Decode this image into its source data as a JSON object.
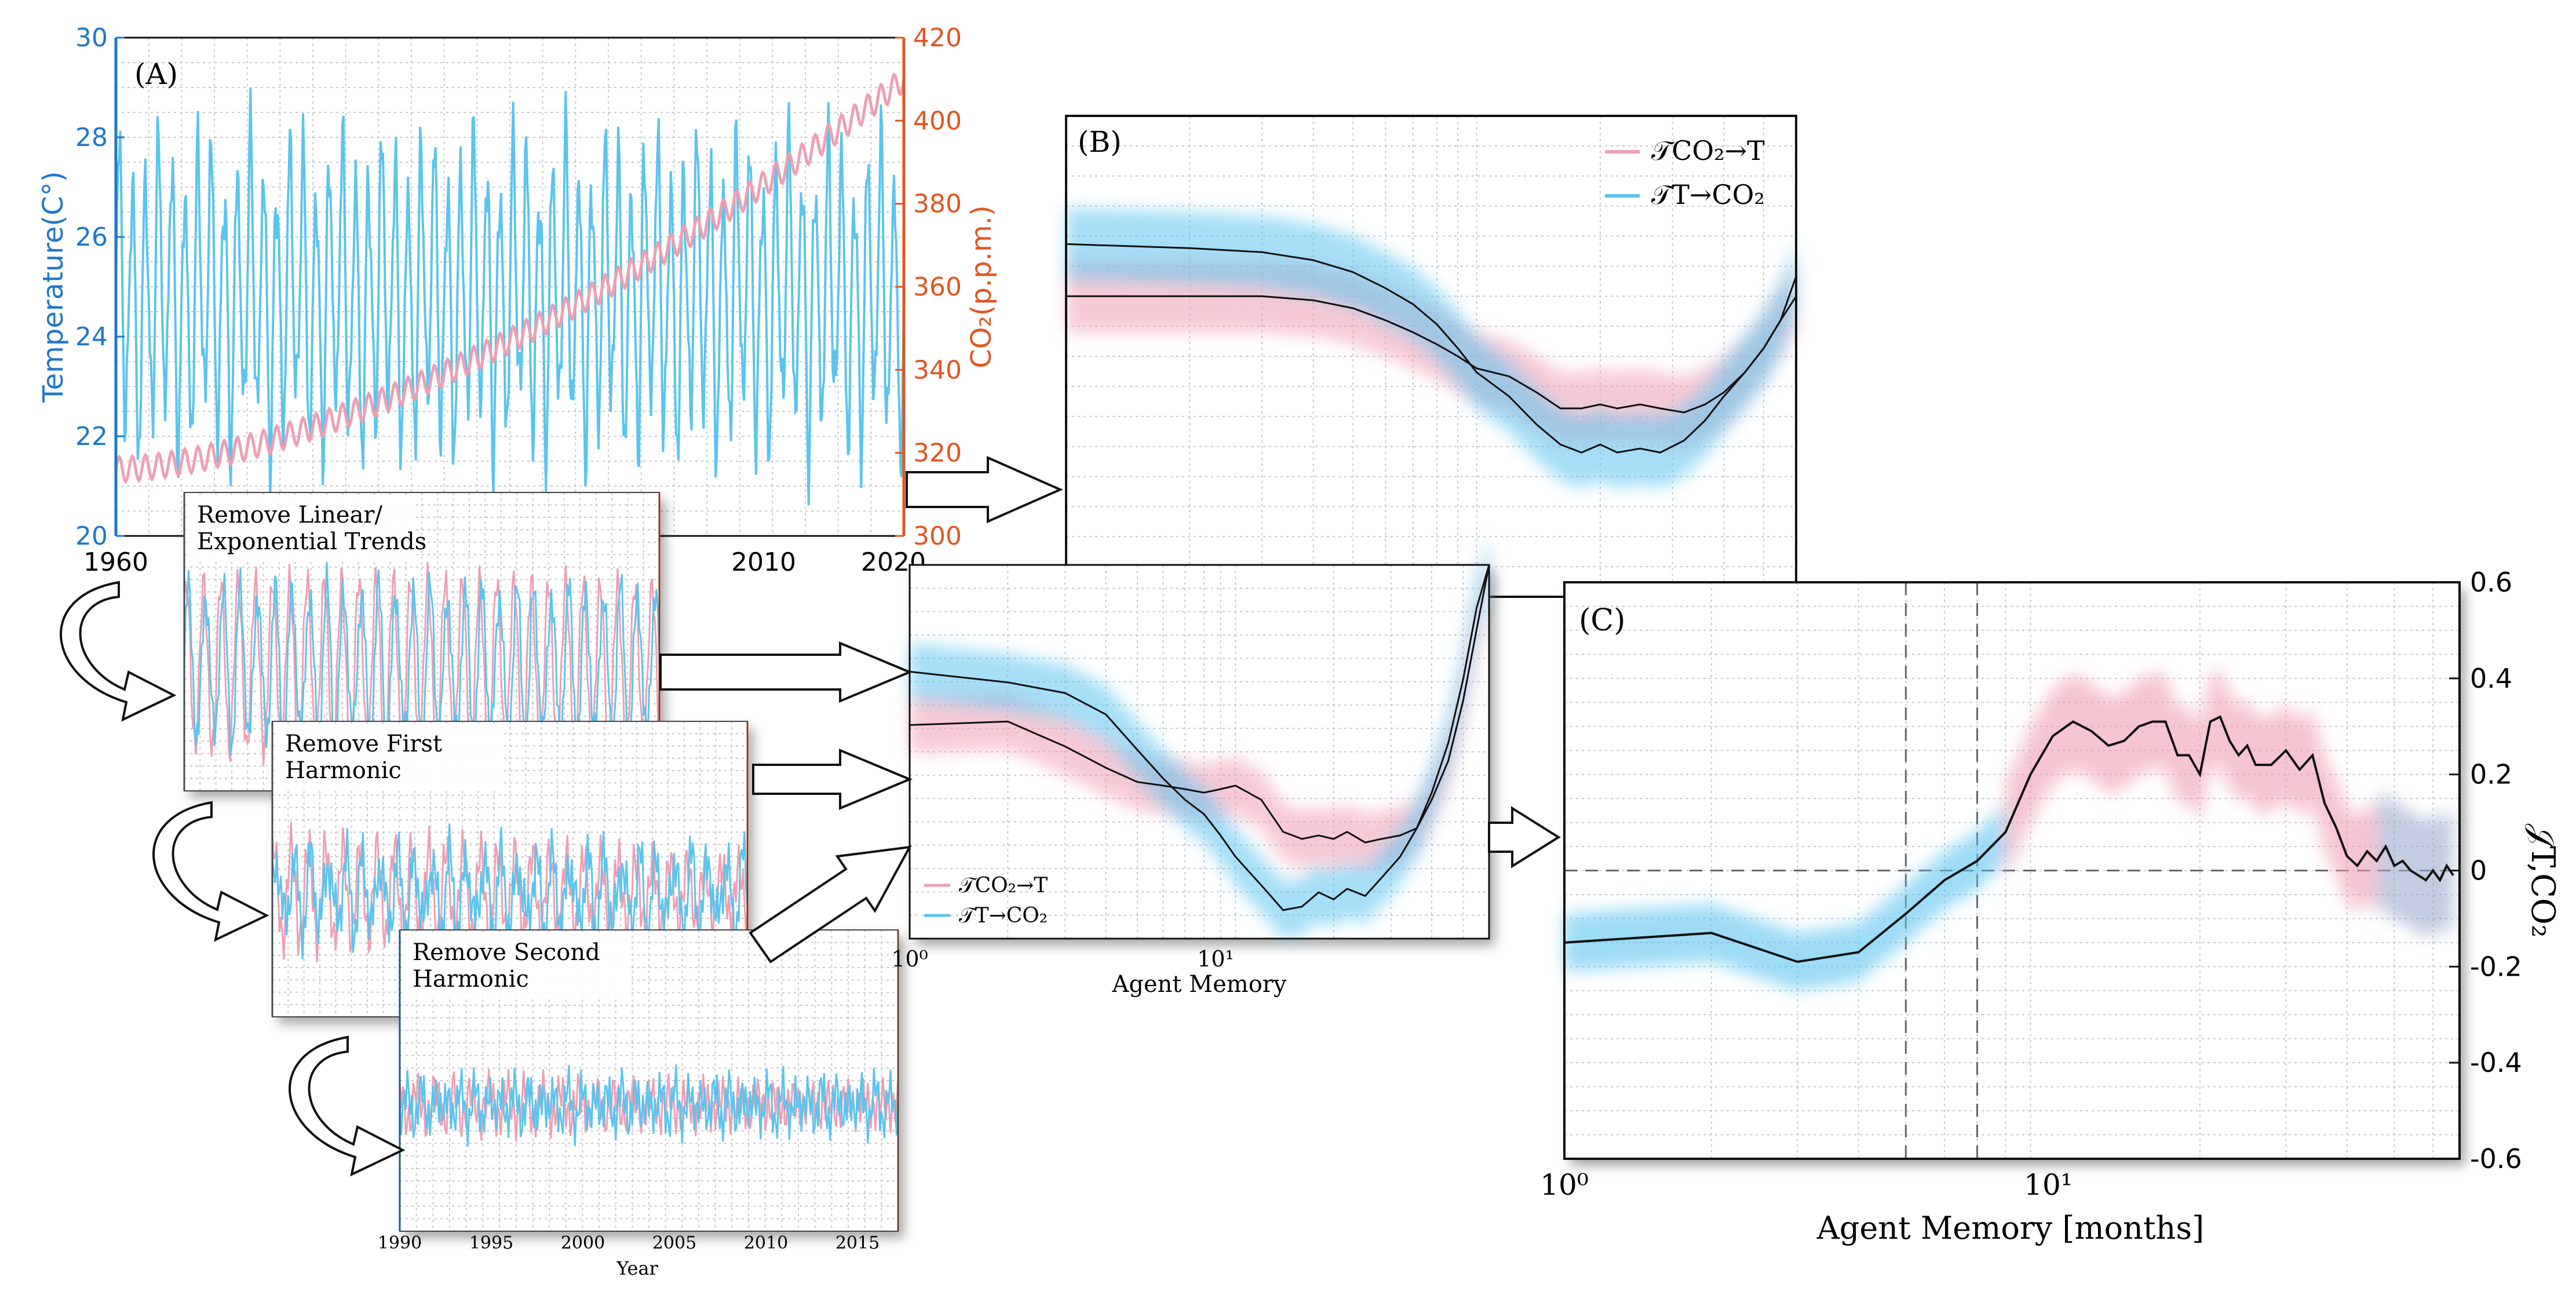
{
  "colors": {
    "temperature": "#5bc4ee",
    "co2": "#ee9fb2",
    "axis_blue": "#1f77c9",
    "axis_orange": "#e3551f",
    "black": "#111111",
    "grid": "#c8c8d2"
  },
  "chart_data": [
    {
      "id": "A",
      "type": "line",
      "panel_label": "(A)",
      "x_ticks": [
        "1960",
        "2010",
        "2020"
      ],
      "xlim": [
        1960,
        2020
      ],
      "left_axis": {
        "label": "Temperature(C°)",
        "ylim": [
          20,
          30
        ],
        "ticks": [
          "20",
          "22",
          "24",
          "26",
          "28",
          "30"
        ]
      },
      "right_axis": {
        "label": "CO₂(p.p.m.)",
        "ylim": [
          300,
          420
        ],
        "ticks": [
          "300",
          "320",
          "340",
          "360",
          "380",
          "400",
          "420"
        ]
      },
      "series": [
        {
          "name": "Temperature",
          "axis": "left",
          "mean": 24.8,
          "amplitude": 2.6
        },
        {
          "name": "CO2",
          "axis": "right",
          "start": 316,
          "end": 410,
          "seasonal_amplitude": 3
        }
      ]
    },
    {
      "id": "detrend-steps",
      "type": "line",
      "steps": [
        {
          "label_line1": "Remove Linear/",
          "label_line2": "Exponential Trends"
        },
        {
          "label_line1": "Remove First",
          "label_line2": "Harmonic"
        },
        {
          "label_line1": "Remove Second",
          "label_line2": "Harmonic"
        }
      ],
      "x_ticks": [
        "1990",
        "1995",
        "2000",
        "2005",
        "2010",
        "2015"
      ],
      "xlabel": "Year"
    },
    {
      "id": "B",
      "type": "line",
      "panel_label": "(B)",
      "xscale": "log",
      "legend": [
        "𝒯CO₂→T",
        "𝒯T→CO₂"
      ],
      "legend_position": "top-right",
      "x": [
        1,
        2,
        3,
        4,
        5,
        6,
        7,
        8,
        9,
        10,
        12,
        14,
        16,
        18,
        20,
        22,
        25,
        28,
        32,
        36,
        40,
        45,
        50,
        55,
        60
      ],
      "series": [
        {
          "name": "𝒯CO₂→T",
          "values": [
            0.4,
            0.4,
            0.4,
            0.39,
            0.37,
            0.34,
            0.31,
            0.28,
            0.25,
            0.22,
            0.2,
            0.16,
            0.12,
            0.12,
            0.13,
            0.12,
            0.13,
            0.12,
            0.11,
            0.13,
            0.16,
            0.21,
            0.27,
            0.34,
            0.4
          ]
        },
        {
          "name": "𝒯T→CO₂",
          "values": [
            0.53,
            0.52,
            0.51,
            0.49,
            0.46,
            0.42,
            0.38,
            0.33,
            0.27,
            0.21,
            0.15,
            0.08,
            0.03,
            0.01,
            0.03,
            0.01,
            0.02,
            0.01,
            0.04,
            0.09,
            0.15,
            0.21,
            0.27,
            0.34,
            0.45
          ]
        }
      ]
    },
    {
      "id": "detrended-TE",
      "type": "line",
      "xscale": "log",
      "x_tick_labels": [
        "10⁰",
        "10¹"
      ],
      "xlabel": "Agent Memory",
      "legend": [
        "𝒯CO₂→T",
        "𝒯T→CO₂"
      ],
      "legend_position": "bottom-left",
      "x": [
        1,
        2,
        3,
        4,
        5,
        6,
        7,
        8,
        9,
        10,
        12,
        14,
        16,
        18,
        20,
        22,
        25,
        28,
        32,
        36,
        40,
        45,
        50,
        55,
        60
      ],
      "series": [
        {
          "name": "𝒯CO₂→T",
          "values": [
            0.55,
            0.56,
            0.49,
            0.43,
            0.39,
            0.38,
            0.37,
            0.36,
            0.37,
            0.38,
            0.34,
            0.25,
            0.23,
            0.24,
            0.23,
            0.25,
            0.22,
            0.23,
            0.24,
            0.26,
            0.34,
            0.45,
            0.62,
            0.82,
            1.0
          ]
        },
        {
          "name": "𝒯T→CO₂",
          "values": [
            0.7,
            0.67,
            0.64,
            0.58,
            0.48,
            0.4,
            0.34,
            0.3,
            0.24,
            0.18,
            0.1,
            0.03,
            0.04,
            0.08,
            0.06,
            0.09,
            0.07,
            0.12,
            0.18,
            0.26,
            0.36,
            0.5,
            0.68,
            0.88,
            1.0
          ]
        }
      ]
    },
    {
      "id": "C",
      "type": "line",
      "panel_label": "(C)",
      "xscale": "log",
      "x_tick_labels": [
        "10⁰",
        "10¹"
      ],
      "xlabel": "Agent Memory [months]",
      "ylabel": "𝒥T,CO₂",
      "ylim": [
        -0.6,
        0.6
      ],
      "y_ticks": [
        "0.6",
        "0.4",
        "0.2",
        "0",
        "-0.2",
        "-0.4",
        "-0.6"
      ],
      "vlines": [
        5,
        7
      ],
      "x": [
        1,
        2,
        3,
        4,
        5,
        6,
        7,
        8,
        9,
        10,
        11,
        12,
        13,
        14,
        15,
        16,
        17,
        18,
        19,
        20,
        21,
        22,
        23,
        24,
        25,
        26,
        28,
        30,
        32,
        34,
        36,
        38,
        40,
        42,
        44,
        46,
        48,
        50,
        52,
        54,
        56,
        58,
        60,
        62,
        64,
        66
      ],
      "values": [
        -0.15,
        -0.13,
        -0.19,
        -0.17,
        -0.09,
        -0.02,
        0.02,
        0.08,
        0.2,
        0.28,
        0.31,
        0.29,
        0.26,
        0.27,
        0.3,
        0.31,
        0.31,
        0.24,
        0.24,
        0.2,
        0.31,
        0.32,
        0.27,
        0.24,
        0.26,
        0.22,
        0.22,
        0.25,
        0.21,
        0.24,
        0.14,
        0.09,
        0.03,
        0.01,
        0.04,
        0.02,
        0.05,
        0.01,
        0.02,
        0.0,
        -0.01,
        -0.02,
        0.0,
        -0.02,
        0.01,
        -0.01
      ]
    }
  ]
}
